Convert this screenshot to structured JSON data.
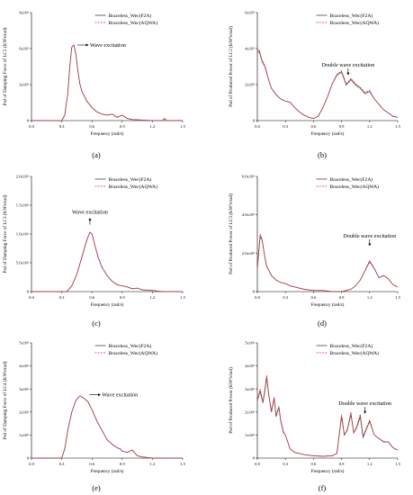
{
  "legend": [
    "Braceless_Wec(F2A)",
    "Braceless_Wec(AQWA)"
  ],
  "series_colors": [
    "#444444",
    "#e0303a"
  ],
  "chart_data": [
    {
      "type": "line",
      "caption": "(a)",
      "xlabel": "Frequency (rad/s)",
      "ylabel": "Psd of Damping Force of LC2 (KN²s/rad)",
      "xlim": [
        0,
        1.5
      ],
      "ylim": [
        0,
        1.0
      ],
      "xticks": [
        0.0,
        0.3,
        0.6,
        0.9,
        1.2,
        1.5
      ],
      "xtick_labels": [
        "0.0",
        "0.3",
        "0.6",
        "0.9",
        "1.2",
        "1.5"
      ],
      "yticks": [
        0,
        0.333,
        0.667,
        1.0
      ],
      "ytick_labels": [
        "0",
        "3x10⁵",
        "6x10⁵",
        "9x10⁵"
      ],
      "annotation": {
        "text": "Wave excitation",
        "x": 0.58,
        "y": 0.7,
        "arrow": "right"
      },
      "legend_position": "top-right",
      "x": [
        0,
        0.3,
        0.33,
        0.36,
        0.38,
        0.4,
        0.42,
        0.44,
        0.46,
        0.48,
        0.5,
        0.55,
        0.6,
        0.65,
        0.7,
        0.75,
        0.8,
        0.85,
        0.9,
        0.95,
        1.0,
        1.2,
        1.3,
        1.32,
        1.34,
        1.36,
        1.5
      ],
      "series": [
        {
          "name": "Braceless_Wec(F2A)",
          "values": [
            0,
            0,
            0.05,
            0.25,
            0.5,
            0.68,
            0.7,
            0.62,
            0.46,
            0.34,
            0.27,
            0.18,
            0.12,
            0.08,
            0.06,
            0.05,
            0.06,
            0.03,
            0.05,
            0.02,
            0.01,
            0.0,
            0.0,
            0.02,
            0.0,
            0.0,
            0.0
          ]
        },
        {
          "name": "Braceless_Wec(AQWA)",
          "values": [
            0,
            0,
            0.05,
            0.25,
            0.5,
            0.68,
            0.7,
            0.62,
            0.46,
            0.34,
            0.27,
            0.18,
            0.12,
            0.08,
            0.06,
            0.05,
            0.06,
            0.03,
            0.05,
            0.02,
            0.01,
            0.0,
            0.0,
            0.02,
            0.0,
            0.0,
            0.0
          ]
        }
      ]
    },
    {
      "type": "line",
      "caption": "(b)",
      "xlabel": "Frequency (rad/s)",
      "ylabel": "Psd of Produced Power of LC2 (KW²s/rad)",
      "xlim": [
        0,
        1.5
      ],
      "ylim": [
        0,
        1.0
      ],
      "xticks": [
        0.0,
        0.3,
        0.6,
        0.9,
        1.2,
        1.5
      ],
      "xtick_labels": [
        "0.0",
        "0.3",
        "0.6",
        "0.9",
        "1.2",
        "1.5"
      ],
      "yticks": [
        0,
        0.333,
        0.667,
        1.0
      ],
      "ytick_labels": [
        "0",
        "2x10⁵",
        "4x10⁵",
        "6x10⁵"
      ],
      "annotation": {
        "text": "Double wave excitation",
        "x": 0.97,
        "y": 0.5,
        "arrow": "down"
      },
      "legend_position": "top-right",
      "x": [
        0,
        0.02,
        0.05,
        0.08,
        0.1,
        0.12,
        0.15,
        0.2,
        0.25,
        0.3,
        0.35,
        0.4,
        0.45,
        0.5,
        0.55,
        0.6,
        0.65,
        0.7,
        0.75,
        0.8,
        0.85,
        0.9,
        0.95,
        1.0,
        1.05,
        1.1,
        1.15,
        1.2,
        1.25,
        1.3,
        1.35,
        1.4,
        1.45,
        1.5
      ],
      "series": [
        {
          "name": "Braceless_Wec(F2A)",
          "values": [
            0.63,
            0.64,
            0.55,
            0.5,
            0.44,
            0.38,
            0.3,
            0.24,
            0.2,
            0.18,
            0.17,
            0.12,
            0.08,
            0.05,
            0.03,
            0.02,
            0.04,
            0.12,
            0.22,
            0.34,
            0.42,
            0.45,
            0.33,
            0.38,
            0.33,
            0.3,
            0.25,
            0.27,
            0.2,
            0.15,
            0.1,
            0.07,
            0.04,
            0.03
          ]
        },
        {
          "name": "Braceless_Wec(AQWA)",
          "values": [
            0.65,
            0.66,
            0.56,
            0.51,
            0.45,
            0.38,
            0.3,
            0.24,
            0.2,
            0.18,
            0.17,
            0.12,
            0.08,
            0.05,
            0.03,
            0.02,
            0.04,
            0.12,
            0.22,
            0.34,
            0.43,
            0.46,
            0.34,
            0.39,
            0.34,
            0.31,
            0.26,
            0.28,
            0.2,
            0.15,
            0.1,
            0.07,
            0.04,
            0.03
          ]
        }
      ]
    },
    {
      "type": "line",
      "caption": "(c)",
      "xlabel": "Frequency (rad/s)",
      "ylabel": "Psd of Damping Force of LC3 (KN²s/rad)",
      "xlim": [
        0,
        1.5
      ],
      "ylim": [
        0,
        2.0
      ],
      "xticks": [
        0.0,
        0.3,
        0.6,
        0.9,
        1.2,
        1.5
      ],
      "xtick_labels": [
        "0.0",
        "0.3",
        "0.6",
        "0.9",
        "1.2",
        "1.5"
      ],
      "yticks": [
        0,
        0.5,
        1.0,
        1.5,
        2.0
      ],
      "ytick_labels": [
        "0",
        "5.0x10⁵",
        "1.0x10⁶",
        "1.5x10⁶",
        "2.0x10⁶"
      ],
      "annotation": {
        "text": "Wave excitation",
        "x": 0.58,
        "y": 1.35,
        "arrow": "up"
      },
      "legend_position": "top-right",
      "x": [
        0,
        0.35,
        0.4,
        0.45,
        0.5,
        0.55,
        0.58,
        0.6,
        0.63,
        0.66,
        0.7,
        0.75,
        0.8,
        0.85,
        0.9,
        0.95,
        1.0,
        1.05,
        1.1,
        1.2,
        1.3,
        1.5
      ],
      "series": [
        {
          "name": "Braceless_Wec(F2A)",
          "values": [
            0,
            0,
            0.1,
            0.3,
            0.6,
            0.9,
            1.03,
            1.0,
            0.8,
            0.6,
            0.42,
            0.28,
            0.18,
            0.12,
            0.1,
            0.08,
            0.05,
            0.06,
            0.03,
            0.02,
            0.0,
            0.0
          ]
        },
        {
          "name": "Braceless_Wec(AQWA)",
          "values": [
            0,
            0,
            0.1,
            0.3,
            0.6,
            0.9,
            1.03,
            1.0,
            0.8,
            0.6,
            0.42,
            0.28,
            0.18,
            0.12,
            0.1,
            0.08,
            0.05,
            0.06,
            0.03,
            0.02,
            0.0,
            0.0
          ]
        }
      ]
    },
    {
      "type": "line",
      "caption": "(d)",
      "xlabel": "Frequency (rad/s)",
      "ylabel": "Psd of Produced Power of LC3 (KW²s/rad)",
      "xlim": [
        0,
        1.5
      ],
      "ylim": [
        0,
        1.0
      ],
      "xticks": [
        0.0,
        0.3,
        0.6,
        0.9,
        1.2,
        1.5
      ],
      "xtick_labels": [
        "0.0",
        "0.3",
        "0.6",
        "0.9",
        "1.2",
        "1.5"
      ],
      "yticks": [
        0,
        0.333,
        0.667,
        1.0
      ],
      "ytick_labels": [
        "0",
        "2.0x10⁶",
        "4.0x10⁶",
        "6.0x10⁶"
      ],
      "annotation": {
        "text": "Double wave excitation",
        "x": 1.2,
        "y": 0.47,
        "arrow": "down"
      },
      "legend_position": "top-right",
      "x": [
        0,
        0.03,
        0.05,
        0.08,
        0.1,
        0.15,
        0.2,
        0.25,
        0.3,
        0.35,
        0.4,
        0.5,
        0.6,
        0.7,
        0.8,
        0.9,
        1.0,
        1.05,
        1.1,
        1.15,
        1.2,
        1.25,
        1.3,
        1.35,
        1.4,
        1.45,
        1.5
      ],
      "series": [
        {
          "name": "Braceless_Wec(F2A)",
          "values": [
            0.2,
            0.48,
            0.45,
            0.3,
            0.22,
            0.14,
            0.1,
            0.08,
            0.07,
            0.05,
            0.04,
            0.02,
            0.01,
            0.01,
            0.0,
            0.0,
            0.02,
            0.05,
            0.1,
            0.18,
            0.26,
            0.2,
            0.12,
            0.14,
            0.11,
            0.06,
            0.04
          ]
        },
        {
          "name": "Braceless_Wec(AQWA)",
          "values": [
            0.2,
            0.5,
            0.46,
            0.3,
            0.22,
            0.14,
            0.1,
            0.08,
            0.07,
            0.05,
            0.04,
            0.02,
            0.01,
            0.01,
            0.0,
            0.0,
            0.02,
            0.05,
            0.1,
            0.18,
            0.27,
            0.2,
            0.12,
            0.14,
            0.11,
            0.06,
            0.04
          ]
        }
      ]
    },
    {
      "type": "line",
      "caption": "(e)",
      "xlabel": "Frequency (rad/s)",
      "ylabel": "Psd of Damping Force of LC4 (KN²s/rad)",
      "xlim": [
        0,
        1.5
      ],
      "ylim": [
        0,
        5
      ],
      "xticks": [
        0.0,
        0.3,
        0.6,
        0.9,
        1.2,
        1.5
      ],
      "xtick_labels": [
        "0.0",
        "0.3",
        "0.6",
        "0.9",
        "1.2",
        "1.5"
      ],
      "yticks": [
        0,
        1,
        2,
        3,
        4,
        5
      ],
      "ytick_labels": [
        "0",
        "1x10⁶",
        "2x10⁶",
        "3x10⁶",
        "4x10⁶",
        "5x10⁶"
      ],
      "annotation": {
        "text": "Wave excitation",
        "x": 0.7,
        "y": 2.75,
        "arrow": "right"
      },
      "legend_position": "top-right",
      "x": [
        0,
        0.3,
        0.33,
        0.36,
        0.4,
        0.44,
        0.48,
        0.52,
        0.56,
        0.6,
        0.65,
        0.7,
        0.75,
        0.8,
        0.85,
        0.88,
        0.9,
        0.95,
        1.0,
        1.05,
        1.1,
        1.2,
        1.5
      ],
      "series": [
        {
          "name": "Braceless_Wec(F2A)",
          "values": [
            0,
            0,
            0.4,
            1.2,
            2.0,
            2.5,
            2.7,
            2.6,
            2.45,
            2.1,
            1.6,
            1.2,
            0.8,
            0.6,
            0.45,
            0.4,
            0.3,
            0.25,
            0.35,
            0.1,
            0.05,
            0.0,
            0.0
          ]
        },
        {
          "name": "Braceless_Wec(AQWA)",
          "values": [
            0,
            0,
            0.4,
            1.2,
            2.0,
            2.5,
            2.7,
            2.6,
            2.45,
            2.1,
            1.6,
            1.2,
            0.8,
            0.6,
            0.45,
            0.4,
            0.3,
            0.25,
            0.35,
            0.1,
            0.05,
            0.0,
            0.0
          ]
        }
      ]
    },
    {
      "type": "line",
      "caption": "(f)",
      "xlabel": "Frequency (rad/s)",
      "ylabel": "Psd of Produced Power (KW²s/rad)",
      "xlim": [
        0,
        1.5
      ],
      "ylim": [
        0,
        5
      ],
      "xticks": [
        0.0,
        0.3,
        0.6,
        0.9,
        1.2,
        1.5
      ],
      "xtick_labels": [
        "0.0",
        "0.3",
        "0.6",
        "0.9",
        "1.2",
        "1.5"
      ],
      "yticks": [
        0,
        1,
        2,
        3,
        4,
        5
      ],
      "ytick_labels": [
        "0",
        "1x10⁶",
        "2x10⁶",
        "3x10⁶",
        "4x10⁶",
        "5x10⁶"
      ],
      "annotation": {
        "text": "Double wave excitation",
        "x": 1.15,
        "y": 2.3,
        "arrow": "down"
      },
      "legend_position": "top-right",
      "x": [
        0,
        0.03,
        0.06,
        0.08,
        0.1,
        0.12,
        0.15,
        0.18,
        0.2,
        0.23,
        0.25,
        0.28,
        0.3,
        0.35,
        0.4,
        0.5,
        0.6,
        0.7,
        0.8,
        0.85,
        0.9,
        0.93,
        0.96,
        1.0,
        1.03,
        1.06,
        1.1,
        1.13,
        1.16,
        1.2,
        1.25,
        1.3,
        1.35,
        1.4,
        1.45,
        1.5
      ],
      "series": [
        {
          "name": "Braceless_Wec(F2A)",
          "values": [
            2.5,
            2.9,
            2.4,
            2.9,
            3.5,
            2.8,
            2.0,
            2.6,
            1.8,
            2.2,
            1.6,
            1.1,
            1.0,
            0.4,
            0.25,
            0.15,
            0.1,
            0.08,
            0.1,
            0.2,
            1.8,
            1.0,
            1.2,
            1.9,
            1.1,
            1.3,
            1.8,
            0.9,
            1.2,
            1.6,
            1.0,
            0.85,
            0.7,
            0.7,
            0.45,
            0.35
          ]
        },
        {
          "name": "Braceless_Wec(AQWA)",
          "values": [
            2.5,
            3.0,
            2.45,
            3.0,
            3.6,
            2.85,
            2.05,
            2.65,
            1.85,
            2.25,
            1.65,
            1.15,
            1.0,
            0.4,
            0.25,
            0.15,
            0.1,
            0.08,
            0.1,
            0.2,
            1.9,
            1.0,
            1.25,
            2.0,
            1.1,
            1.35,
            1.9,
            0.95,
            1.25,
            1.65,
            1.0,
            0.85,
            0.72,
            0.7,
            0.45,
            0.35
          ]
        }
      ]
    }
  ]
}
